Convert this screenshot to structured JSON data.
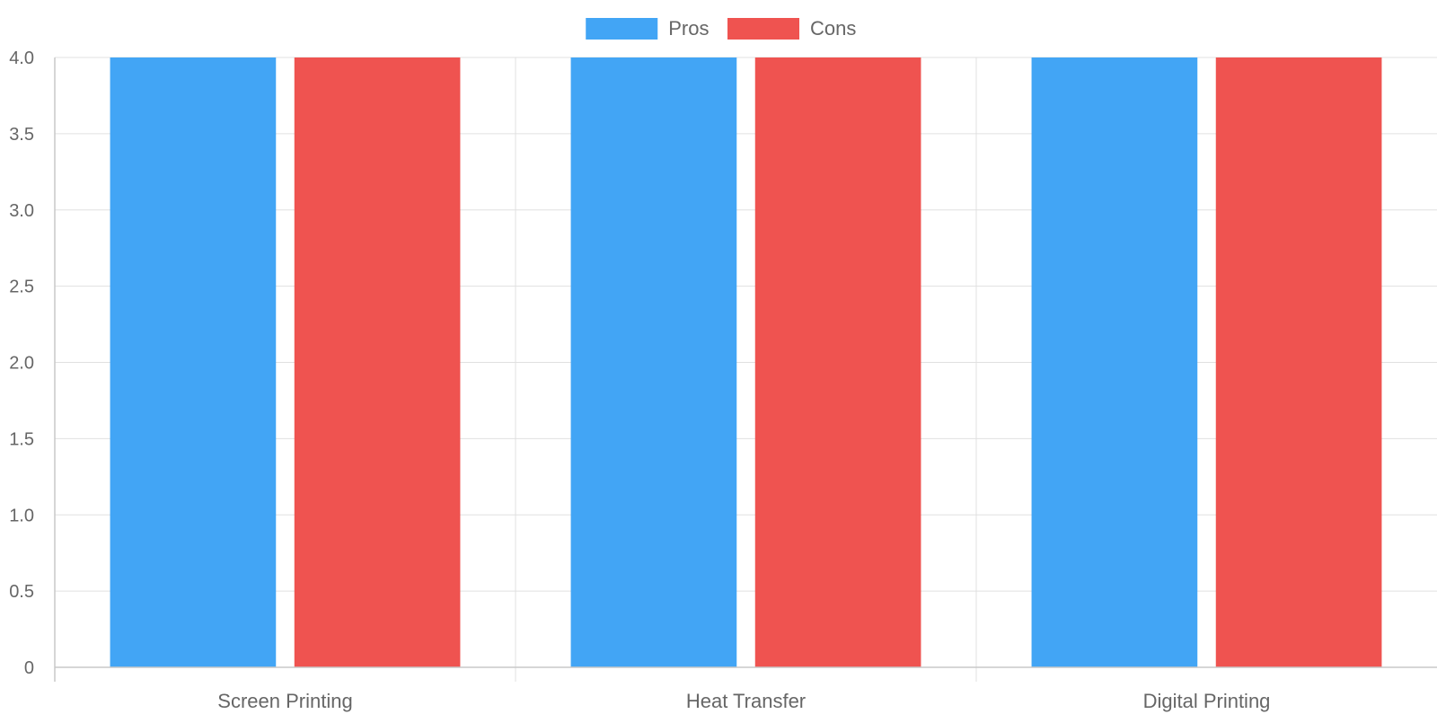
{
  "chart_data": {
    "type": "bar",
    "categories": [
      "Screen Printing",
      "Heat Transfer",
      "Digital Printing"
    ],
    "series": [
      {
        "name": "Pros",
        "color": "#42a5f5",
        "values": [
          4,
          4,
          4
        ]
      },
      {
        "name": "Cons",
        "color": "#ef5350",
        "values": [
          4,
          4,
          4
        ]
      }
    ],
    "title": "",
    "xlabel": "",
    "ylabel": "",
    "ylim": [
      0,
      4
    ],
    "yticks": [
      "0",
      "0.5",
      "1.0",
      "1.5",
      "2.0",
      "2.5",
      "3.0",
      "3.5",
      "4.0"
    ],
    "grid": true,
    "legend_position": "top-center"
  },
  "colors": {
    "grid": "#e0e0e0",
    "axis": "#c8c8c8",
    "text": "#666666"
  }
}
